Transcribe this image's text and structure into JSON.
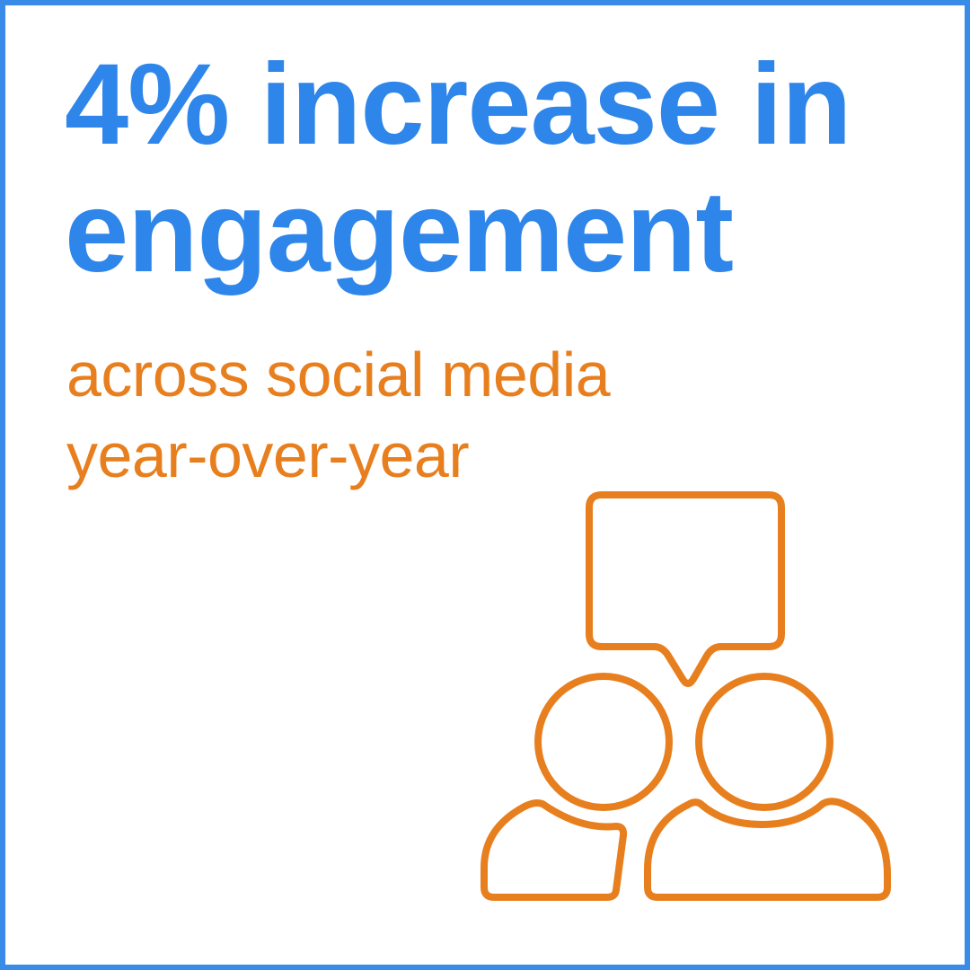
{
  "headline": {
    "line1": "4% increase in",
    "line2": "engagement"
  },
  "subhead": {
    "line1": "across social media",
    "line2": "year-over-year"
  },
  "icon": "two-people-conversation-icon",
  "colors": {
    "border": "#3a8be8",
    "headline": "#2f86ea",
    "accent": "#e87f1e",
    "background": "#ffffff"
  }
}
